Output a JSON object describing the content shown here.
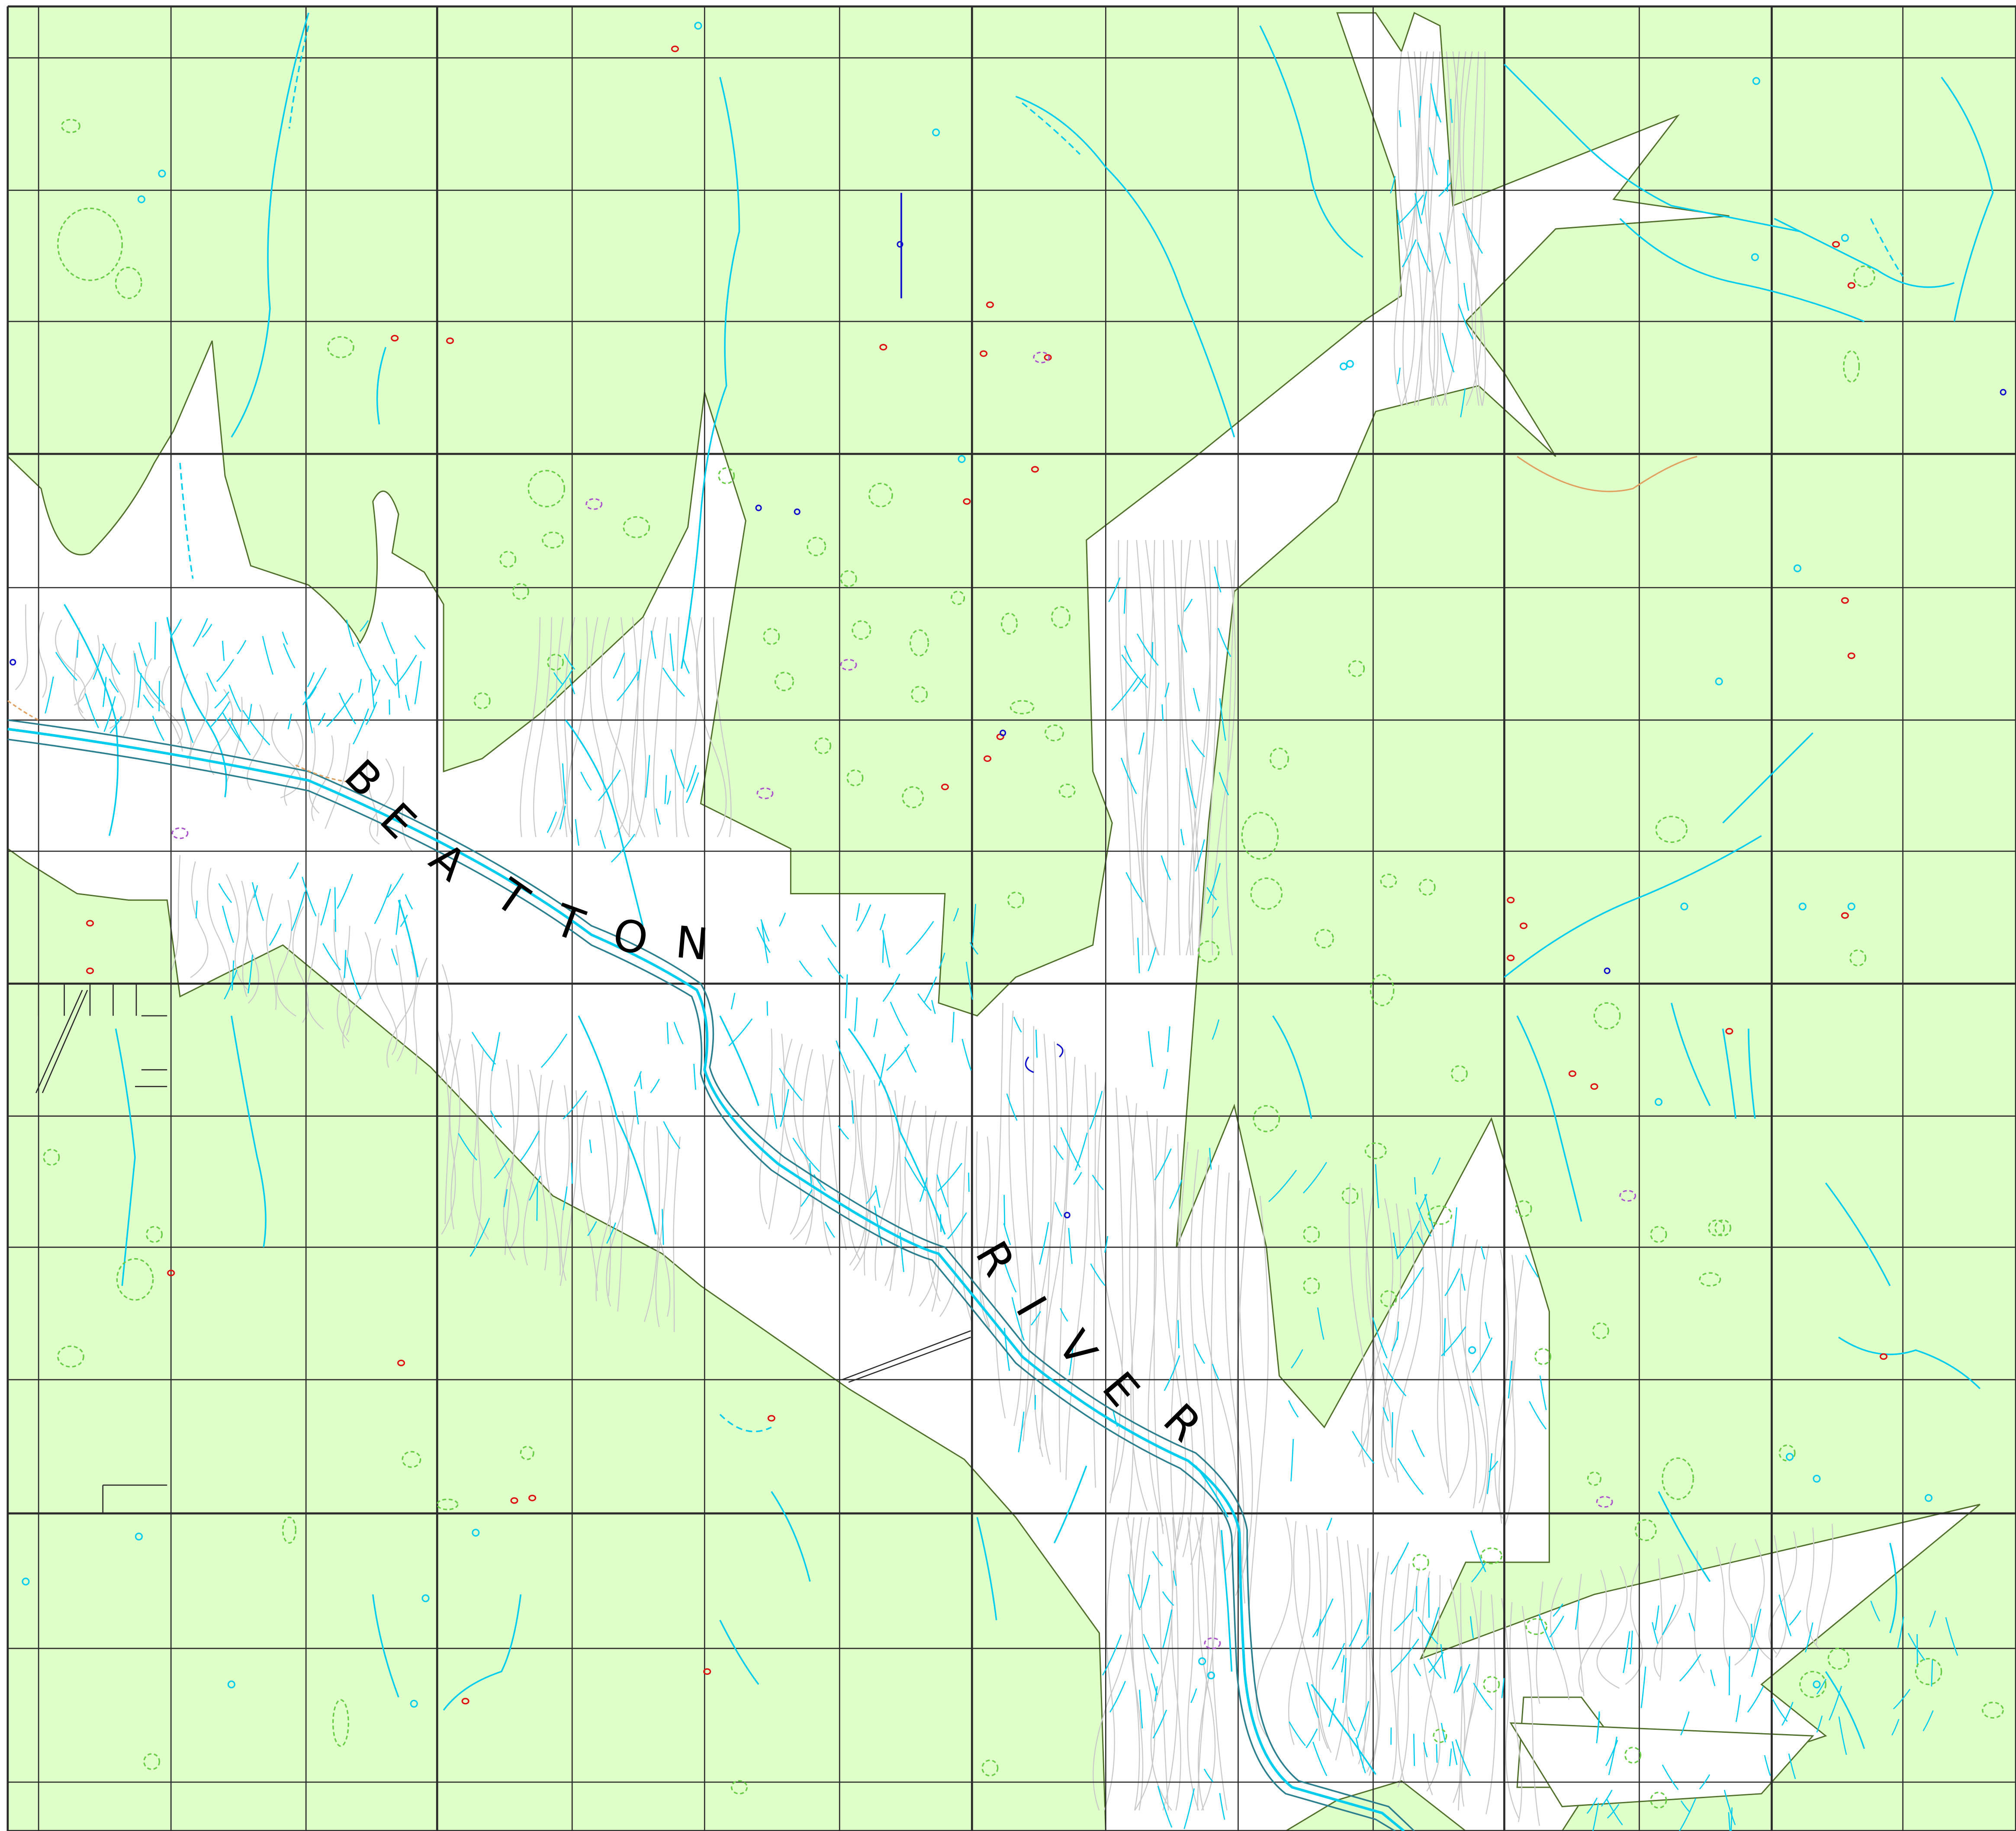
{
  "map": {
    "colors": {
      "forest": "#dfffc8",
      "clearing": "#ffffff",
      "water": "#00ccee",
      "river_bank": "#2a7f8f",
      "grid_line": "#2b2b2b",
      "polygon_edge": "#4f6f2a",
      "contour": "#c9c9c9",
      "wetland": "#66cc44",
      "feature_red": "#dd1111",
      "feature_blue": "#1111cc",
      "feature_purple": "#aa55cc",
      "trail_orange": "#e0a060"
    },
    "river": {
      "name_letters": [
        {
          "text": "B"
        },
        {
          "text": "E"
        },
        {
          "text": "A"
        },
        {
          "text": "T"
        },
        {
          "text": "T"
        },
        {
          "text": "O"
        },
        {
          "text": "N"
        },
        {
          "text": "R"
        },
        {
          "text": "I"
        },
        {
          "text": "V"
        },
        {
          "text": "E"
        },
        {
          "text": "R"
        }
      ]
    }
  }
}
